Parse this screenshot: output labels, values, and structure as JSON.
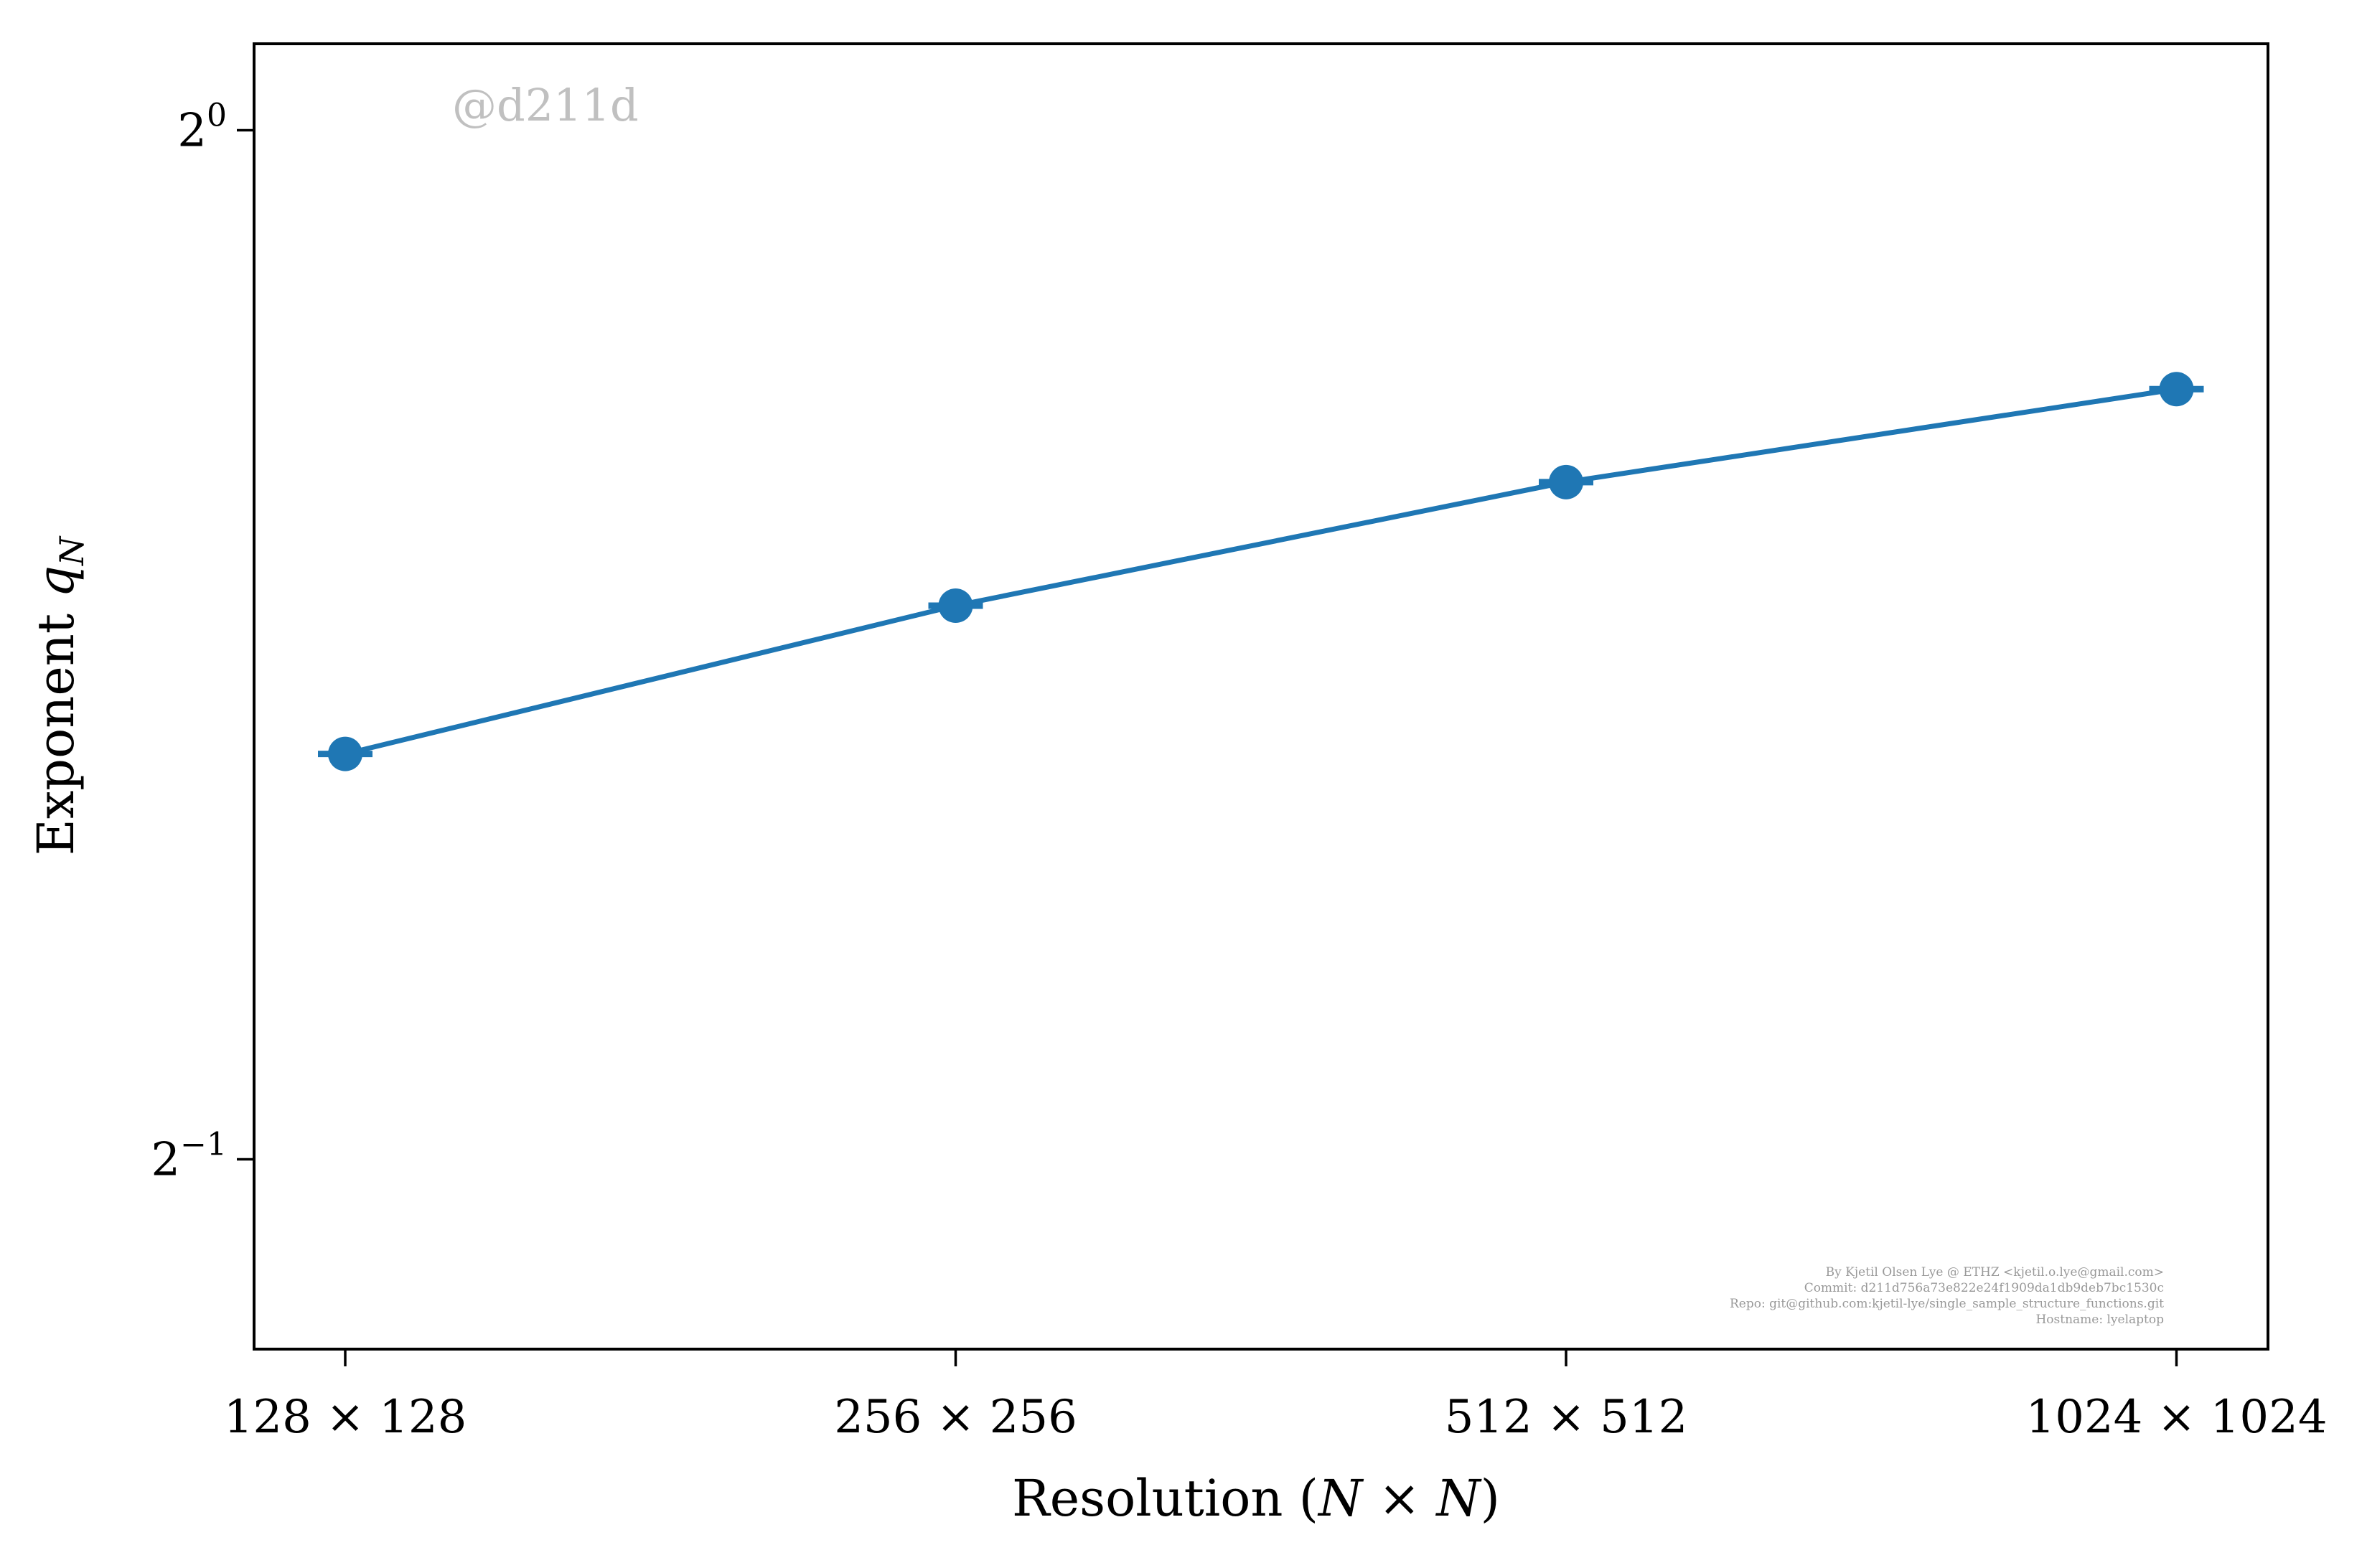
{
  "chart_data": {
    "type": "line",
    "xlabel_text": "Resolution (",
    "xlabel_var1": "N",
    "xlabel_times": " × ",
    "xlabel_var2": "N",
    "xlabel_close": ")",
    "ylabel_text": "Exponent ",
    "ylabel_var": "q",
    "ylabel_sub": "N",
    "categories": [
      "128 × 128",
      "256 × 256",
      "512 × 512",
      "1024 × 1024"
    ],
    "x": [
      128,
      256,
      512,
      1024
    ],
    "values": [
      0.657,
      0.726,
      0.789,
      0.84
    ],
    "y_scale": "log2",
    "ylim": [
      0.44,
      1.06
    ],
    "y_ticks": [
      {
        "value": 1.0,
        "base": "2",
        "exp": "0"
      },
      {
        "value": 0.5,
        "base": "2",
        "exp": "−1"
      }
    ],
    "grid": false,
    "marker": "circle",
    "error_bars": true,
    "color": "#1f77b4",
    "watermark": "@d211d",
    "credits": [
      "By Kjetil Olsen Lye @ ETHZ <kjetil.o.lye@gmail.com>",
      "Commit: d211d756a73e822e24f1909da1db9deb7bc1530c",
      "Repo: git@github.com:kjetil-lye/single_sample_structure_functions.git",
      "Hostname: lyelaptop"
    ]
  }
}
